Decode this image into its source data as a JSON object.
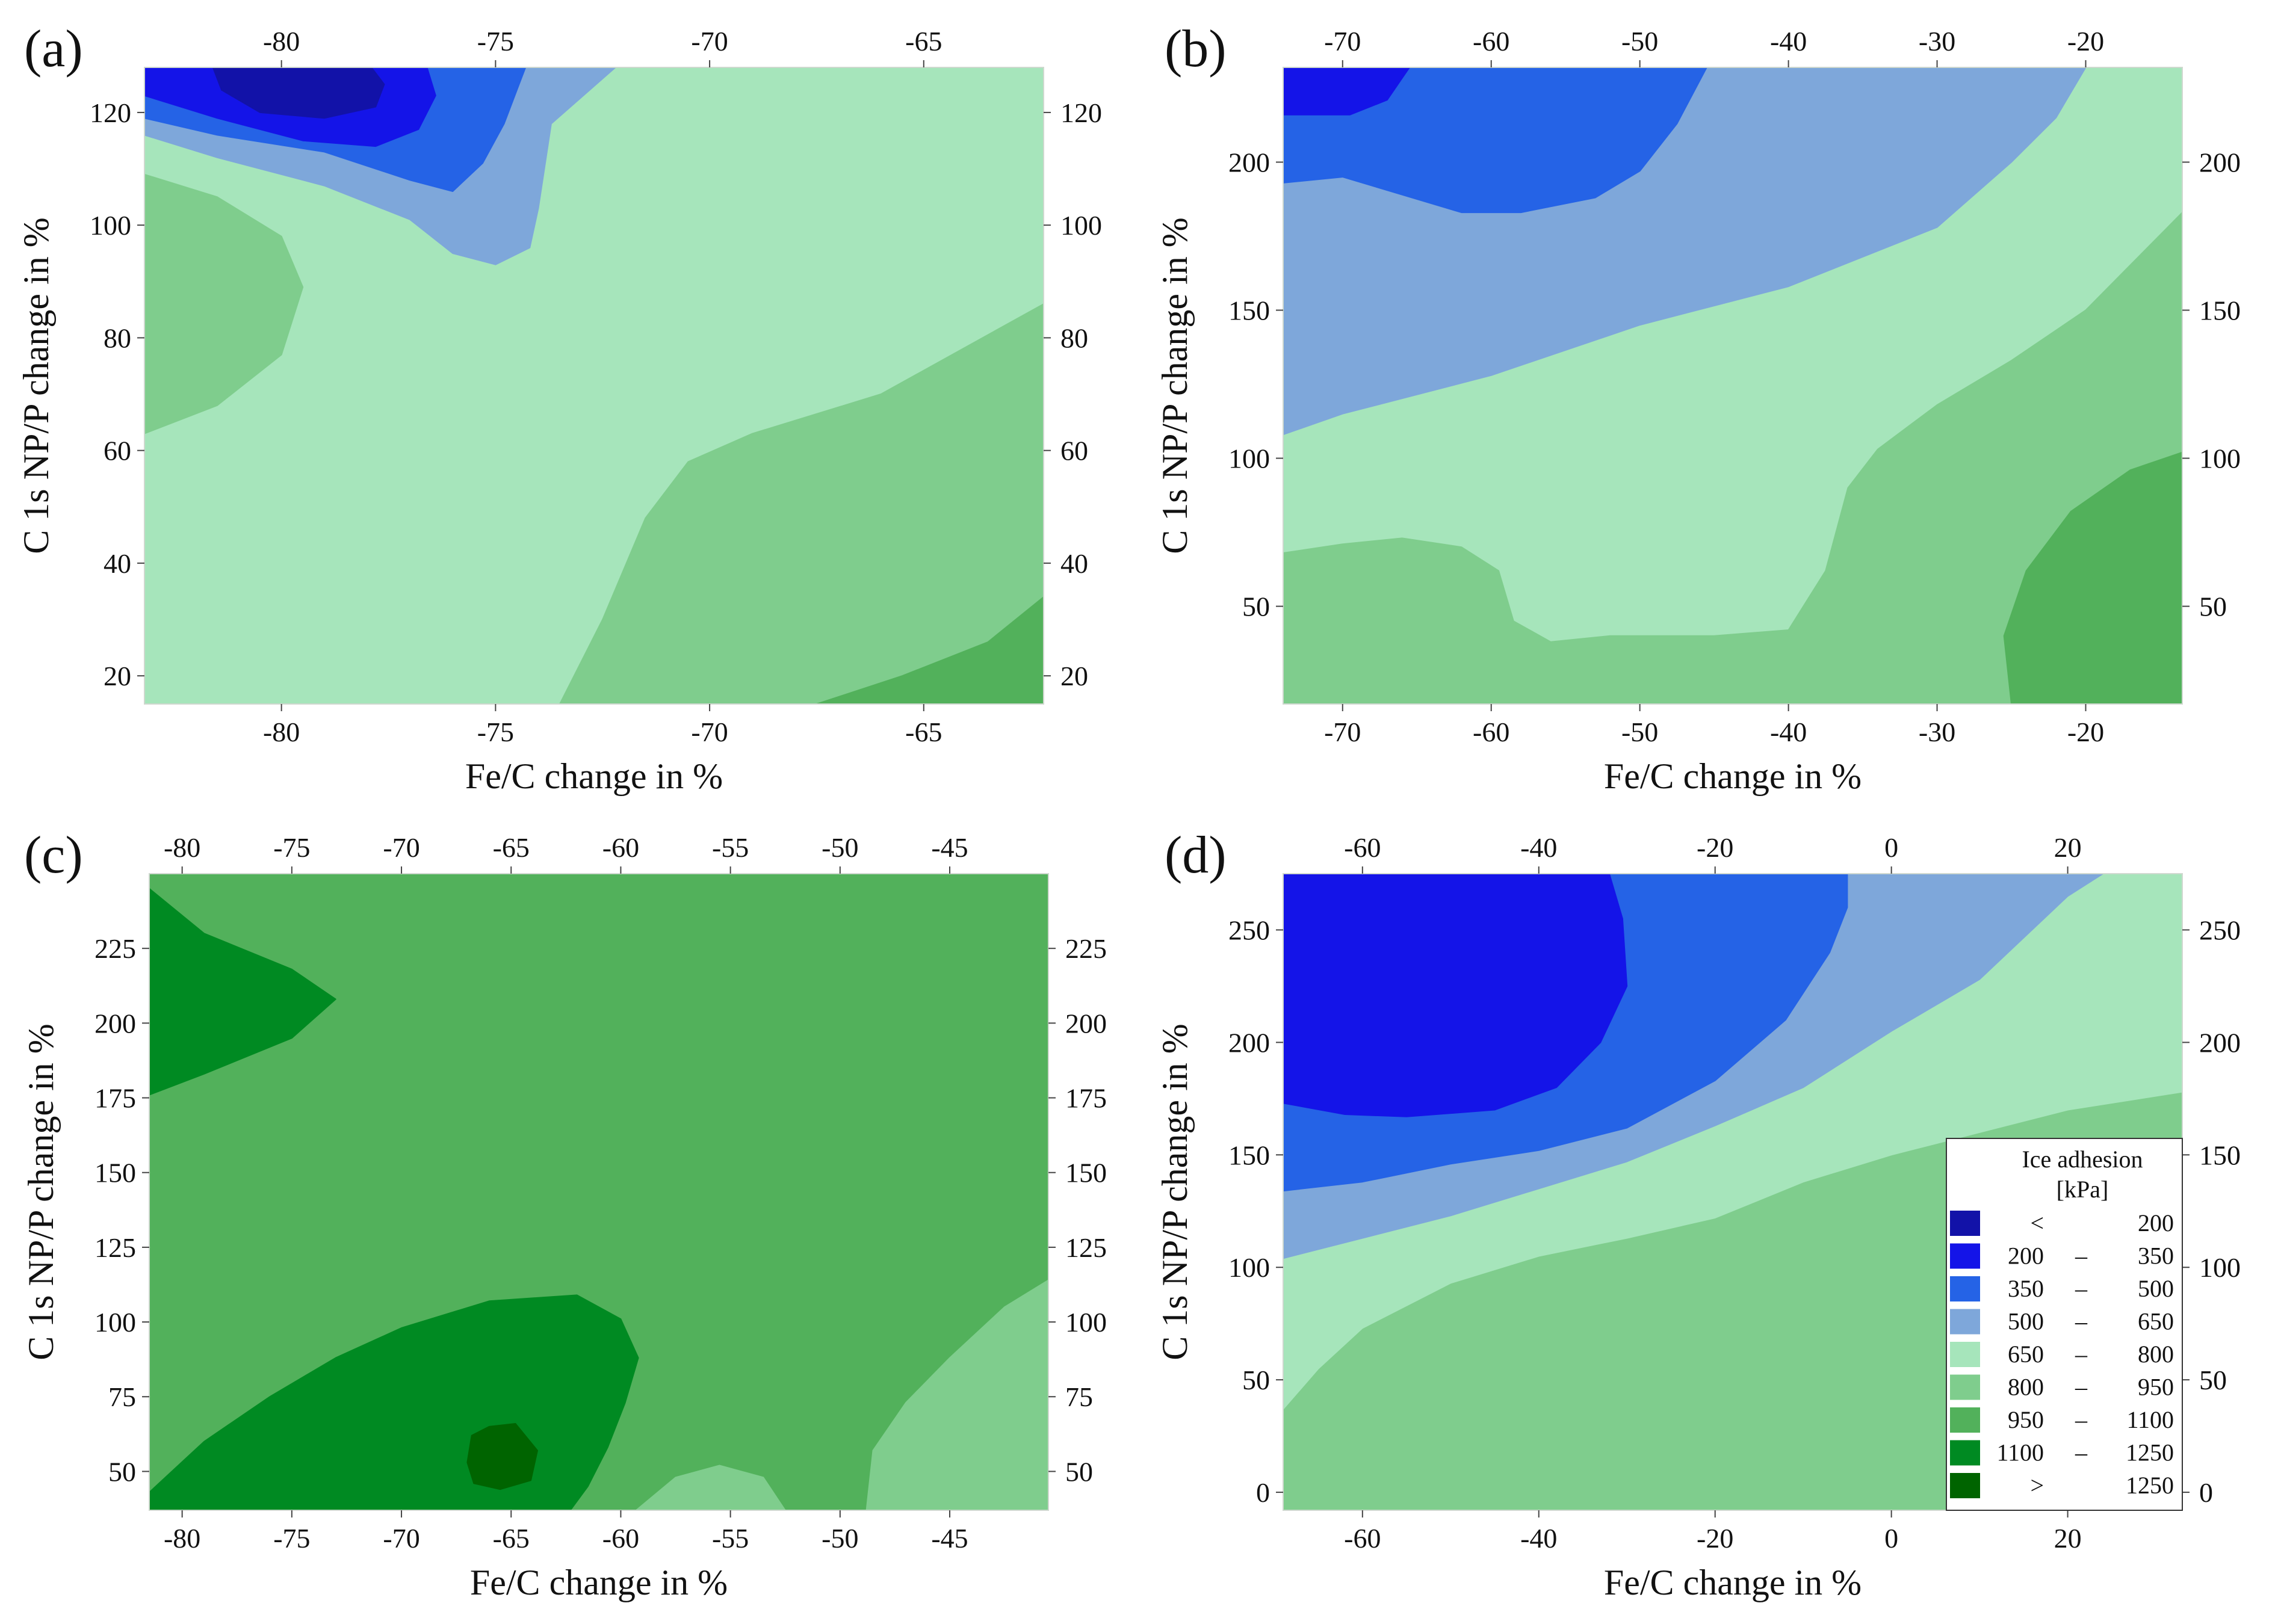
{
  "chart_data": [
    {
      "type": "contour",
      "panel": "(a)",
      "xlabel": "Fe/C change in %",
      "ylabel": "C 1s NP/P change in %",
      "xlim": [
        -83.2,
        -62.2
      ],
      "ylim": [
        15,
        128
      ],
      "xticks": [
        "-80",
        "-75",
        "-70",
        "-65"
      ],
      "xtick_values": [
        -80,
        -75,
        -70,
        -65
      ],
      "yticks": [
        "20",
        "40",
        "60",
        "80",
        "100",
        "120"
      ],
      "ytick_values": [
        20,
        40,
        60,
        80,
        100,
        120
      ],
      "background_level": "650 – 800",
      "regions": [
        {
          "level": "800 – 950",
          "points": [
            [
              -83.2,
              15
            ],
            [
              -73.5,
              15
            ],
            [
              -72.5,
              30
            ],
            [
              -71.5,
              48
            ],
            [
              -70.5,
              58
            ],
            [
              -69,
              63
            ],
            [
              -66,
              70
            ],
            [
              -62.2,
              86
            ],
            [
              -62.2,
              15
            ]
          ]
        },
        {
          "level": "950 – 1100",
          "points": [
            [
              -67.5,
              15
            ],
            [
              -65.5,
              20
            ],
            [
              -63.5,
              26
            ],
            [
              -62.2,
              34
            ],
            [
              -62.2,
              15
            ]
          ]
        },
        {
          "level": "800 – 950",
          "points": [
            [
              -83.2,
              63
            ],
            [
              -81.5,
              68
            ],
            [
              -80,
              77
            ],
            [
              -79.5,
              89
            ],
            [
              -80,
              98
            ],
            [
              -81.5,
              105
            ],
            [
              -83.2,
              109
            ]
          ]
        },
        {
          "level": "500 – 650",
          "points": [
            [
              -83.2,
              116
            ],
            [
              -81.5,
              112
            ],
            [
              -79,
              107
            ],
            [
              -77,
              101
            ],
            [
              -76,
              95
            ],
            [
              -75,
              93
            ],
            [
              -74.2,
              96
            ],
            [
              -74,
              103
            ],
            [
              -73.7,
              118
            ],
            [
              -72.8,
              124
            ],
            [
              -72.2,
              128
            ],
            [
              -83.2,
              128
            ]
          ]
        },
        {
          "level": "350 – 500",
          "points": [
            [
              -83.2,
              119
            ],
            [
              -81.5,
              116
            ],
            [
              -79,
              113
            ],
            [
              -77,
              108
            ],
            [
              -76,
              106
            ],
            [
              -75.3,
              111
            ],
            [
              -74.8,
              118
            ],
            [
              -74.5,
              124
            ],
            [
              -74.3,
              128
            ],
            [
              -83.2,
              128
            ]
          ]
        },
        {
          "level": "200 – 350",
          "points": [
            [
              -83.2,
              123
            ],
            [
              -81.5,
              119
            ],
            [
              -79.5,
              115
            ],
            [
              -77.8,
              114
            ],
            [
              -76.8,
              117
            ],
            [
              -76.4,
              123
            ],
            [
              -76.6,
              128
            ],
            [
              -83.2,
              128
            ]
          ]
        },
        {
          "level": "< 200",
          "points": [
            [
              -81.6,
              128
            ],
            [
              -81.4,
              124
            ],
            [
              -80.5,
              120
            ],
            [
              -79,
              119
            ],
            [
              -77.8,
              121
            ],
            [
              -77.6,
              125
            ],
            [
              -77.9,
              128
            ]
          ]
        }
      ]
    },
    {
      "type": "contour",
      "panel": "(b)",
      "xlabel": "Fe/C change in %",
      "ylabel": "C 1s NP/P change in %",
      "xlim": [
        -74,
        -13.5
      ],
      "ylim": [
        17,
        232
      ],
      "xticks": [
        "-70",
        "-60",
        "-50",
        "-40",
        "-30",
        "-20"
      ],
      "xtick_values": [
        -70,
        -60,
        -50,
        -40,
        -30,
        -20
      ],
      "yticks": [
        "50",
        "100",
        "150",
        "200"
      ],
      "ytick_values": [
        50,
        100,
        150,
        200
      ],
      "background_level": "650 – 800",
      "regions": [
        {
          "level": "800 – 950",
          "points": [
            [
              -74,
              17
            ],
            [
              -74,
              68
            ],
            [
              -70,
              71
            ],
            [
              -66,
              73
            ],
            [
              -62,
              70
            ],
            [
              -59.5,
              62
            ],
            [
              -58.5,
              45
            ],
            [
              -56,
              38
            ],
            [
              -52,
              40
            ],
            [
              -45,
              40
            ],
            [
              -40,
              42
            ],
            [
              -37.5,
              62
            ],
            [
              -36,
              90
            ],
            [
              -34,
              103
            ],
            [
              -30,
              118
            ],
            [
              -25,
              133
            ],
            [
              -20,
              150
            ],
            [
              -13.5,
              183
            ],
            [
              -13.5,
              17
            ]
          ]
        },
        {
          "level": "950 – 1100",
          "points": [
            [
              -25,
              17
            ],
            [
              -25.5,
              40
            ],
            [
              -24,
              62
            ],
            [
              -21,
              82
            ],
            [
              -17,
              96
            ],
            [
              -13.5,
              102
            ],
            [
              -13.5,
              17
            ]
          ]
        },
        {
          "level": "500 – 650",
          "points": [
            [
              -74,
              108
            ],
            [
              -70,
              115
            ],
            [
              -60,
              128
            ],
            [
              -50,
              145
            ],
            [
              -40,
              158
            ],
            [
              -30,
              178
            ],
            [
              -25,
              200
            ],
            [
              -22,
              215
            ],
            [
              -20,
              232
            ],
            [
              -74,
              232
            ]
          ]
        },
        {
          "level": "350 – 500",
          "points": [
            [
              -74,
              193
            ],
            [
              -70,
              195
            ],
            [
              -62,
              183
            ],
            [
              -58,
              183
            ],
            [
              -53,
              188
            ],
            [
              -50,
              197
            ],
            [
              -47.5,
              213
            ],
            [
              -45.5,
              232
            ],
            [
              -74,
              232
            ]
          ]
        },
        {
          "level": "200 – 350",
          "points": [
            [
              -74,
              216
            ],
            [
              -69.5,
              216
            ],
            [
              -67,
              221
            ],
            [
              -65.5,
              232
            ],
            [
              -74,
              232
            ]
          ]
        }
      ]
    },
    {
      "type": "contour",
      "panel": "(c)",
      "xlabel": "Fe/C change in %",
      "ylabel": "C 1s NP/P change in %",
      "xlim": [
        -81.5,
        -40.5
      ],
      "ylim": [
        37,
        250
      ],
      "xticks": [
        "-80",
        "-75",
        "-70",
        "-65",
        "-60",
        "-55",
        "-50",
        "-45"
      ],
      "xtick_values": [
        -80,
        -75,
        -70,
        -65,
        -60,
        -55,
        -50,
        -45
      ],
      "yticks": [
        "50",
        "75",
        "100",
        "125",
        "150",
        "175",
        "200",
        "225"
      ],
      "ytick_values": [
        50,
        75,
        100,
        125,
        150,
        175,
        200,
        225
      ],
      "background_level": "950 – 1100",
      "regions": [
        {
          "level": "800 – 950",
          "points": [
            [
              -48.8,
              37
            ],
            [
              -48.5,
              57
            ],
            [
              -47,
              73
            ],
            [
              -45,
              88
            ],
            [
              -42.5,
              105
            ],
            [
              -40.5,
              114
            ],
            [
              -40.5,
              37
            ]
          ]
        },
        {
          "level": "800 – 950",
          "points": [
            [
              -59.3,
              37
            ],
            [
              -57.5,
              48
            ],
            [
              -55.5,
              52
            ],
            [
              -53.5,
              48
            ],
            [
              -52.5,
              37
            ]
          ]
        },
        {
          "level": "1100 – 1250",
          "points": [
            [
              -81.5,
              37
            ],
            [
              -81.5,
              43
            ],
            [
              -79,
              60
            ],
            [
              -76,
              75
            ],
            [
              -73,
              88
            ],
            [
              -70,
              98
            ],
            [
              -66,
              107
            ],
            [
              -62,
              109
            ],
            [
              -60,
              101
            ],
            [
              -59.2,
              88
            ],
            [
              -59.8,
              73
            ],
            [
              -60.6,
              58
            ],
            [
              -61.5,
              45
            ],
            [
              -62.3,
              37
            ]
          ]
        },
        {
          "level": "> 1250",
          "points": [
            [
              -67,
              53
            ],
            [
              -66.8,
              62
            ],
            [
              -66,
              65
            ],
            [
              -64.8,
              66
            ],
            [
              -63.8,
              57
            ],
            [
              -64.1,
              47
            ],
            [
              -65.5,
              44
            ],
            [
              -66.7,
              46
            ]
          ]
        },
        {
          "level": "1100 – 1250",
          "points": [
            [
              -81.5,
              176
            ],
            [
              -79,
              183
            ],
            [
              -75,
              195
            ],
            [
              -73,
              208
            ],
            [
              -75,
              218
            ],
            [
              -79,
              230
            ],
            [
              -81.5,
              245
            ]
          ]
        }
      ]
    },
    {
      "type": "contour",
      "panel": "(d)",
      "xlabel": "Fe/C change in %",
      "ylabel": "C 1s NP/P change in %",
      "xlim": [
        -69,
        33
      ],
      "ylim": [
        -8,
        275
      ],
      "xticks": [
        "-60",
        "-40",
        "-20",
        "0",
        "20"
      ],
      "xtick_values": [
        -60,
        -40,
        -20,
        0,
        20
      ],
      "yticks": [
        "0",
        "50",
        "100",
        "150",
        "200",
        "250"
      ],
      "ytick_values": [
        0,
        50,
        100,
        150,
        200,
        250
      ],
      "background_level": "800 – 950",
      "regions": [
        {
          "level": "650 – 800",
          "points": [
            [
              -69,
              37
            ],
            [
              -65,
              55
            ],
            [
              -60,
              73
            ],
            [
              -50,
              93
            ],
            [
              -40,
              105
            ],
            [
              -30,
              113
            ],
            [
              -20,
              122
            ],
            [
              -10,
              138
            ],
            [
              0,
              150
            ],
            [
              10,
              160
            ],
            [
              20,
              170
            ],
            [
              33,
              178
            ],
            [
              33,
              275
            ],
            [
              -69,
              275
            ]
          ]
        },
        {
          "level": "500 – 650",
          "points": [
            [
              -69,
              104
            ],
            [
              -60,
              113
            ],
            [
              -50,
              123
            ],
            [
              -40,
              135
            ],
            [
              -30,
              147
            ],
            [
              -20,
              163
            ],
            [
              -10,
              180
            ],
            [
              0,
              205
            ],
            [
              10,
              228
            ],
            [
              20,
              265
            ],
            [
              24,
              275
            ],
            [
              -69,
              275
            ]
          ]
        },
        {
          "level": "350 – 500",
          "points": [
            [
              -69,
              134
            ],
            [
              -60,
              138
            ],
            [
              -50,
              146
            ],
            [
              -40,
              152
            ],
            [
              -30,
              162
            ],
            [
              -20,
              183
            ],
            [
              -12,
              210
            ],
            [
              -7,
              240
            ],
            [
              -5,
              260
            ],
            [
              -5,
              275
            ],
            [
              -69,
              275
            ]
          ]
        },
        {
          "level": "200 – 350",
          "points": [
            [
              -69,
              173
            ],
            [
              -62,
              168
            ],
            [
              -55,
              167
            ],
            [
              -45,
              170
            ],
            [
              -38,
              180
            ],
            [
              -33,
              200
            ],
            [
              -30,
              225
            ],
            [
              -30.5,
              255
            ],
            [
              -32,
              275
            ],
            [
              -69,
              275
            ]
          ]
        }
      ],
      "legend": {
        "title_line1": "Ice adhesion",
        "title_line2": "[kPa]",
        "placement": "bottom-right",
        "entries": [
          {
            "low": "<",
            "high": "200",
            "dash": "",
            "color": "#1212a8"
          },
          {
            "low": "200",
            "high": "350",
            "dash": "–",
            "color": "#1414e8"
          },
          {
            "low": "350",
            "high": "500",
            "dash": "–",
            "color": "#2563e6"
          },
          {
            "low": "500",
            "high": "650",
            "dash": "–",
            "color": "#7ea7da"
          },
          {
            "low": "650",
            "high": "800",
            "dash": "–",
            "color": "#a6e5bb"
          },
          {
            "low": "800",
            "high": "950",
            "dash": "–",
            "color": "#7fcd8d"
          },
          {
            "low": "950",
            "high": "1100",
            "dash": "–",
            "color": "#52b15b"
          },
          {
            "low": "1100",
            "high": "1250",
            "dash": "–",
            "color": "#008a22"
          },
          {
            "low": ">",
            "high": "1250",
            "dash": "",
            "color": "#006400"
          }
        ]
      }
    }
  ],
  "level_colors": {
    "< 200": "#1212a8",
    "200 – 350": "#1414e8",
    "350 – 500": "#2563e6",
    "500 – 650": "#7ea7da",
    "650 – 800": "#a6e5bb",
    "800 – 950": "#7fcd8d",
    "950 – 1100": "#52b15b",
    "1100 – 1250": "#008a22",
    "> 1250": "#006400"
  }
}
